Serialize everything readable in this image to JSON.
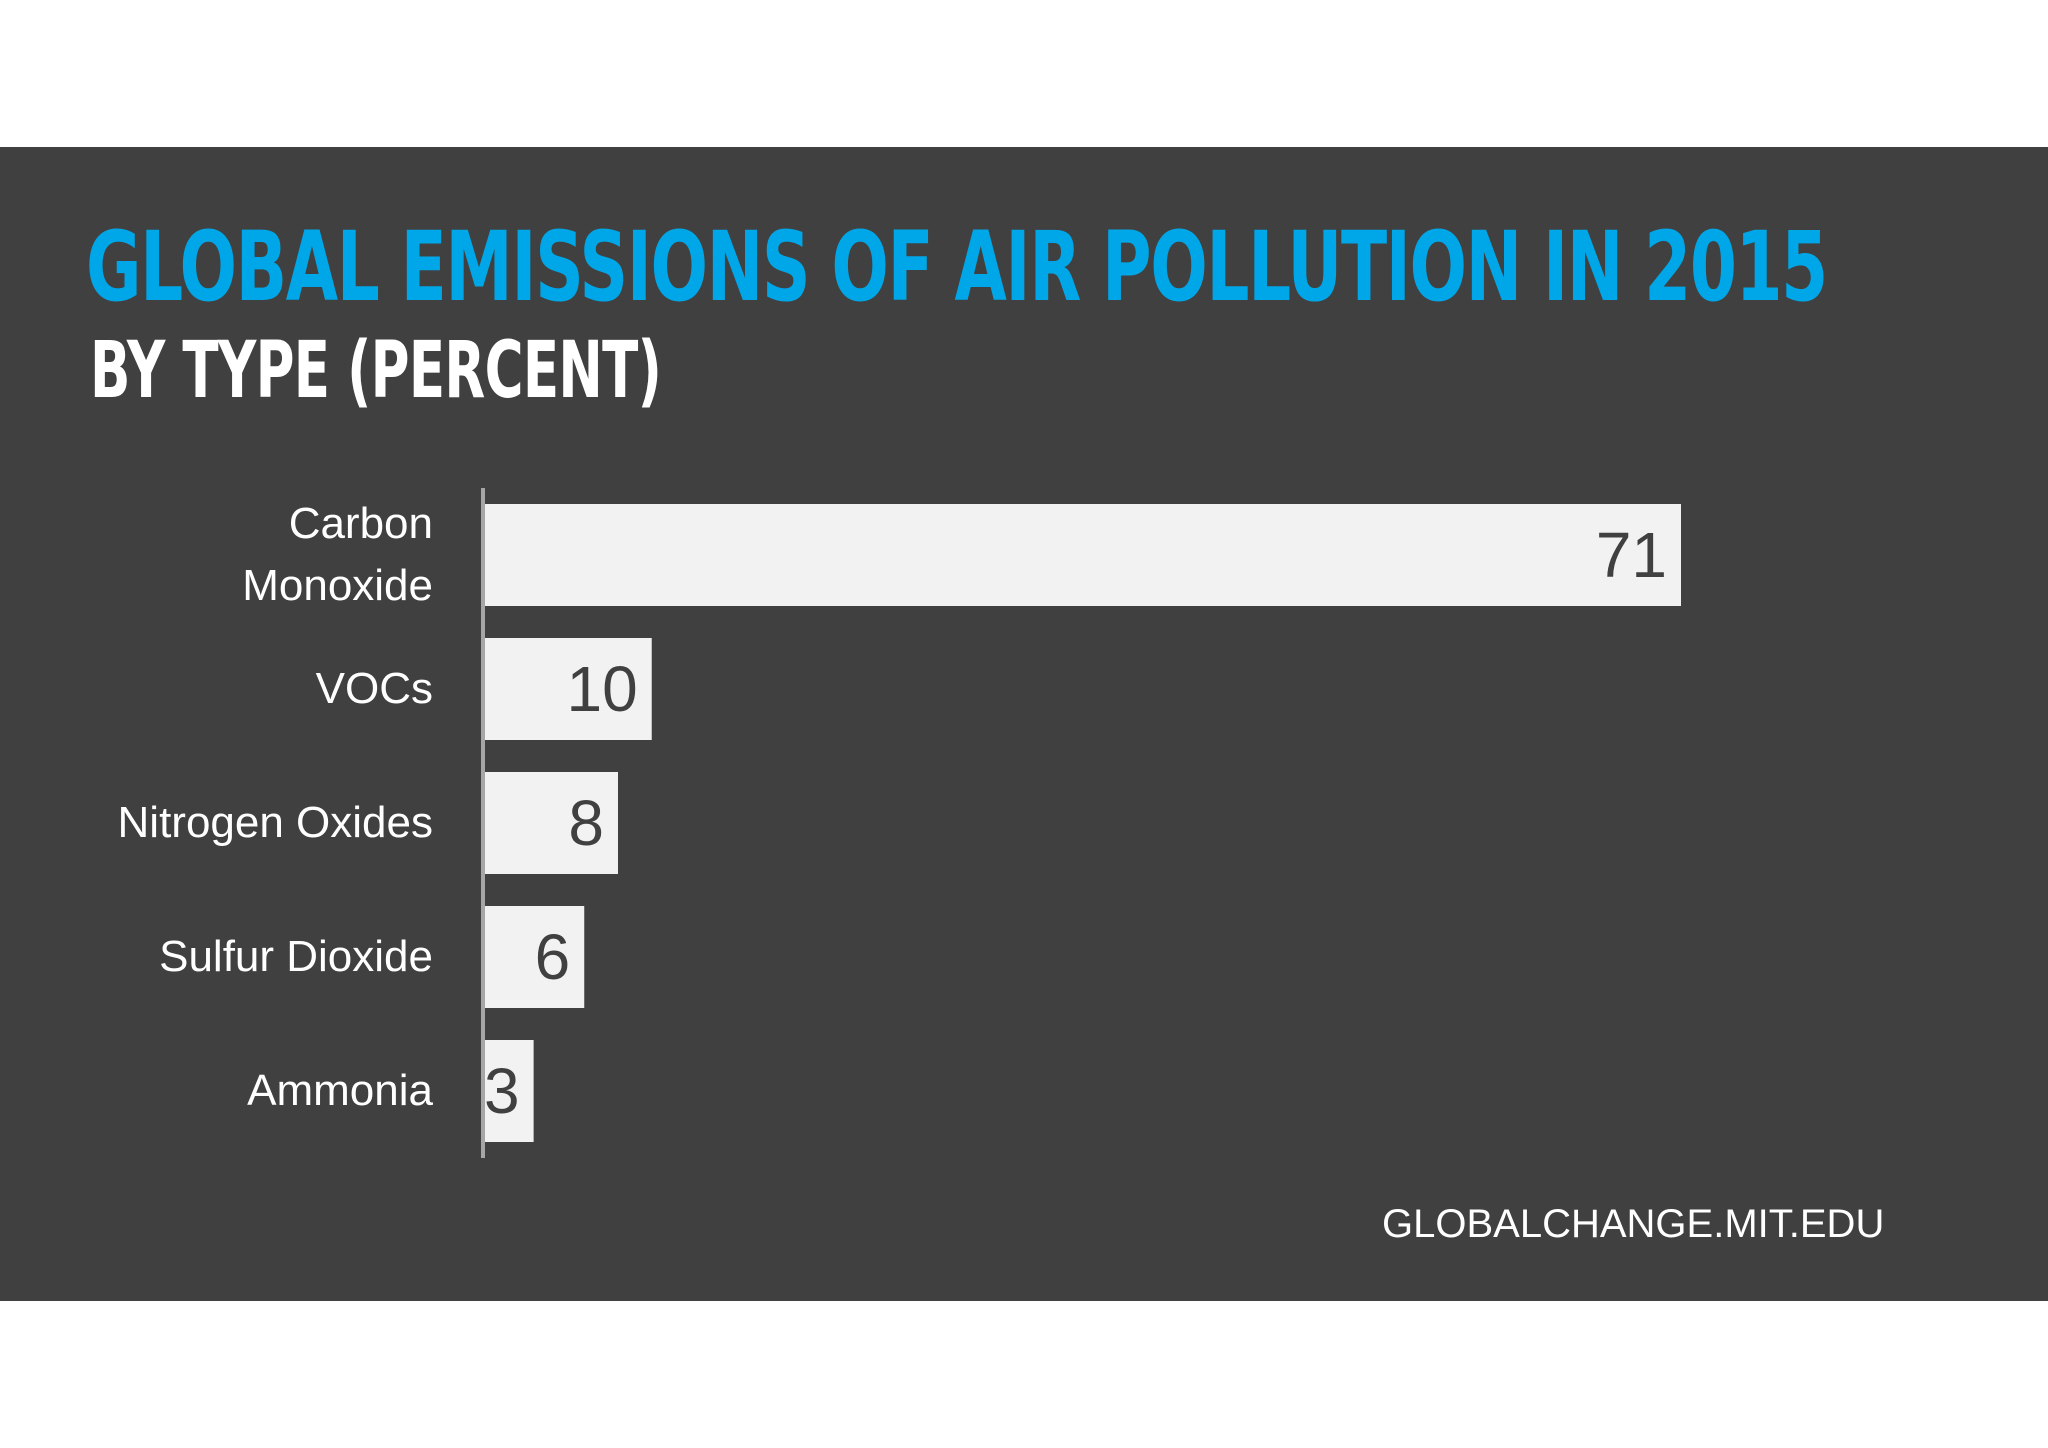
{
  "header": {
    "title": "GLOBAL EMISSIONS OF AIR POLLUTION IN 2015",
    "subtitle": "BY TYPE (PERCENT)"
  },
  "footer": {
    "source": "GLOBALCHANGE.MIT.EDU"
  },
  "colors": {
    "panel": "#404040",
    "title": "#00a7e8",
    "subtitle": "#ffffff",
    "bar": "#f2f2f2",
    "value_text": "#404040",
    "label_text": "#ffffff",
    "axis": "#a6a6a6"
  },
  "chart_data": {
    "type": "bar",
    "orientation": "horizontal",
    "title": "GLOBAL EMISSIONS OF AIR POLLUTION IN 2015",
    "subtitle": "BY TYPE (PERCENT)",
    "categories": [
      [
        "Carbon",
        "Monoxide"
      ],
      [
        "VOCs"
      ],
      [
        "Nitrogen Oxides"
      ],
      [
        "Sulfur Dioxide"
      ],
      [
        "Ammonia"
      ]
    ],
    "values": [
      71,
      10,
      8,
      6,
      3
    ],
    "xlim": [
      0,
      71
    ],
    "data_labels": true,
    "grid": false,
    "legend": "none"
  }
}
